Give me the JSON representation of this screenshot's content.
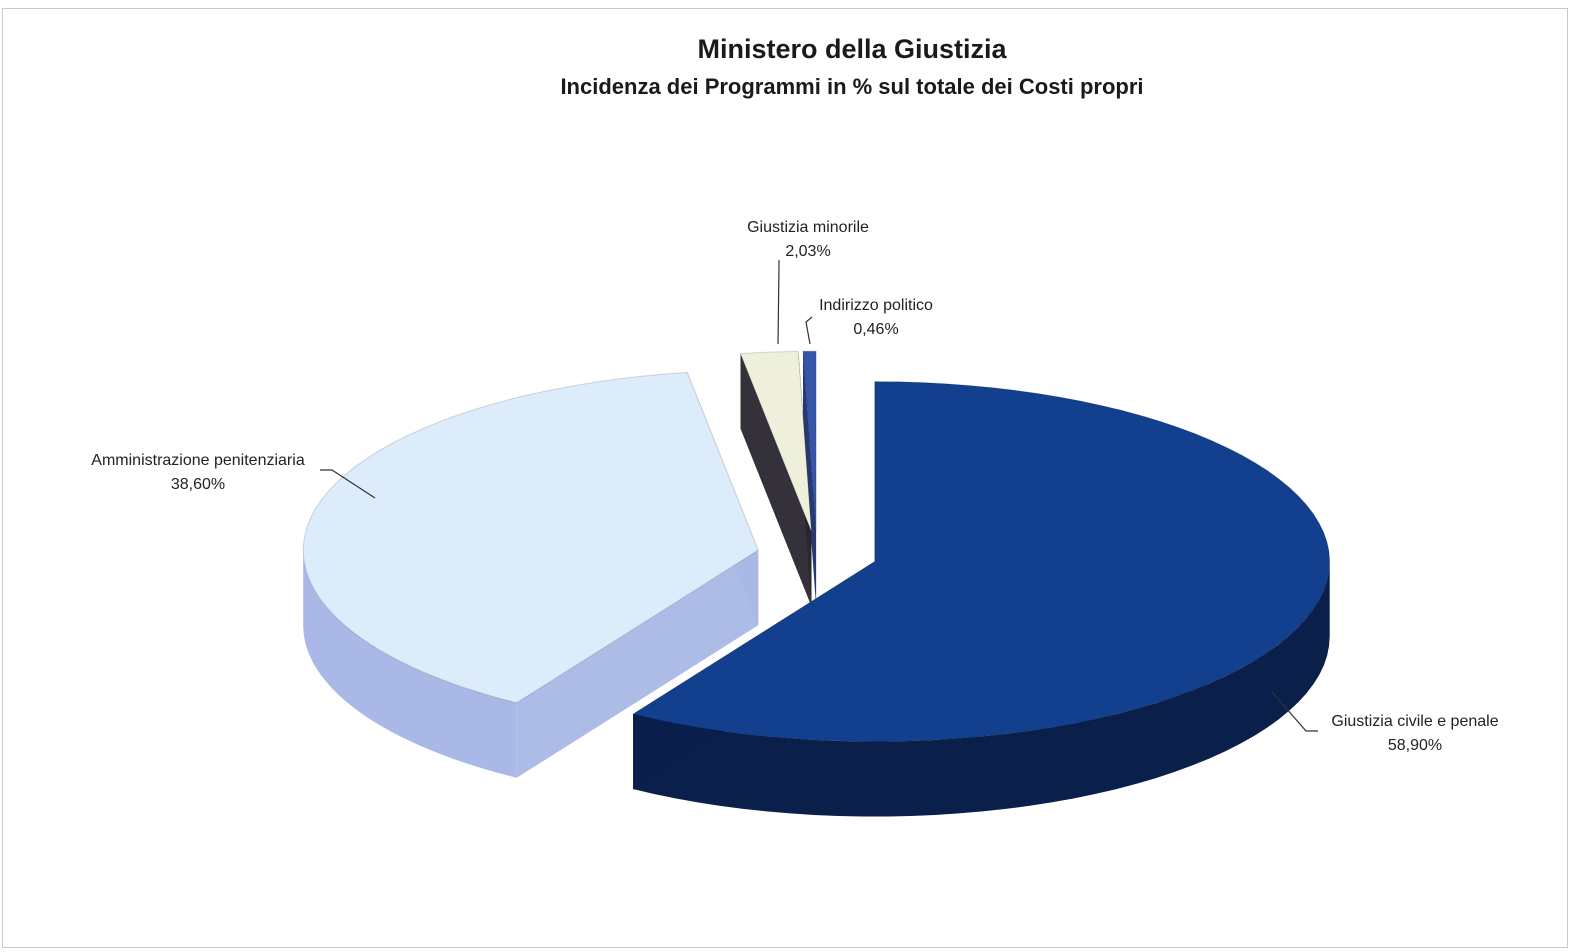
{
  "chart_data": {
    "type": "pie",
    "title": "Ministero della Giustizia",
    "subtitle": "Incidenza dei Programmi in % sul totale dei Costi propri",
    "slices": [
      {
        "name": "Giustizia civile e penale",
        "value": 58.9,
        "label": "58,90%",
        "color": "#123f8e",
        "side_color": "#0a1f4a"
      },
      {
        "name": "Amministrazione penitenziaria",
        "value": 38.6,
        "label": "38,60%",
        "color": "#dcecfb",
        "side_color": "#a9b8e6"
      },
      {
        "name": "Giustizia minorile",
        "value": 2.03,
        "label": "2,03%",
        "color": "#eef0dc",
        "side_color": "#2a2630"
      },
      {
        "name": "Indirizzo politico",
        "value": 0.46,
        "label": "0,46%",
        "color": "#3555a8",
        "side_color": "#1c2e6a"
      }
    ],
    "style": "3d-exploded",
    "legend": "none"
  }
}
